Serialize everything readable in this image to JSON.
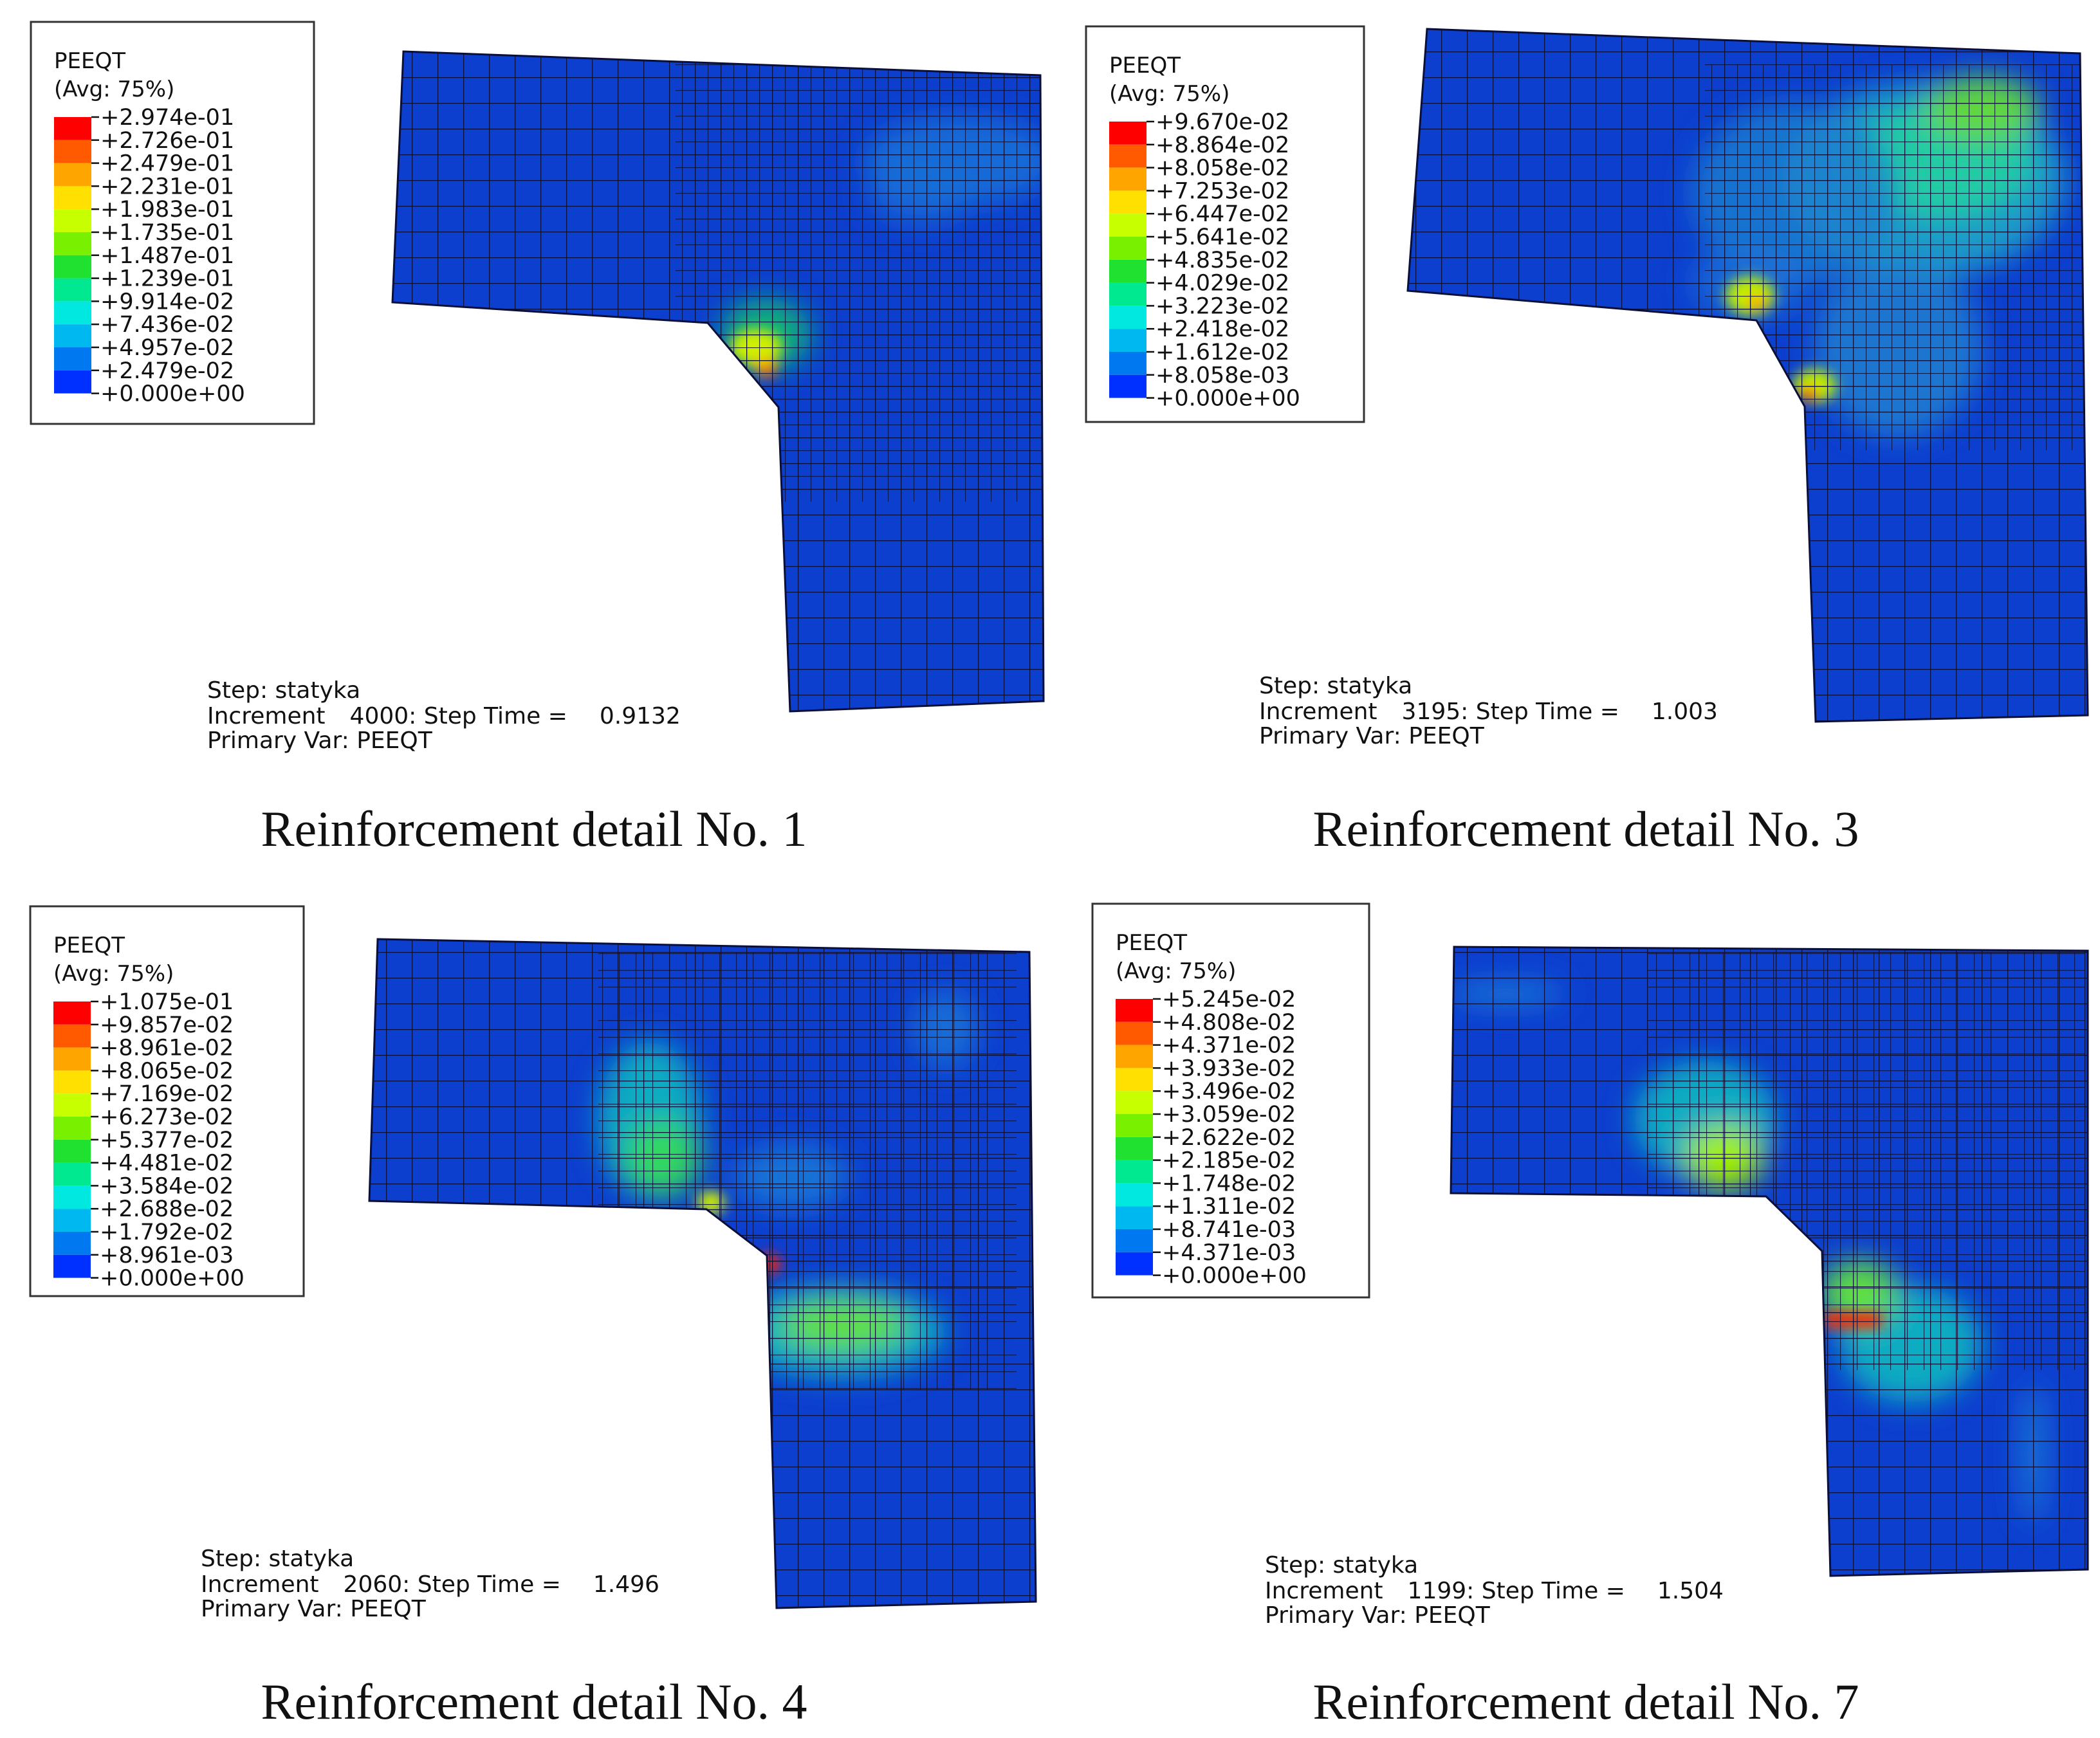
{
  "panels": [
    {
      "id": "p1",
      "legend": {
        "title": "PEEQT",
        "subtitle": "(Avg: 75%)",
        "values": [
          "+2.974e-01",
          "+2.726e-01",
          "+2.479e-01",
          "+2.231e-01",
          "+1.983e-01",
          "+1.735e-01",
          "+1.487e-01",
          "+1.239e-01",
          "+9.914e-02",
          "+7.436e-02",
          "+4.957e-02",
          "+2.479e-02",
          "+0.000e+00"
        ]
      },
      "info": {
        "step": "Step: statyka",
        "increment_label": "Increment",
        "increment": "4000",
        "step_time_label": ": Step Time =",
        "step_time": "0.9132",
        "primary_var": "Primary Var: PEEQT"
      },
      "caption": "Reinforcement detail No. 1"
    },
    {
      "id": "p3",
      "legend": {
        "title": "PEEQT",
        "subtitle": "(Avg: 75%)",
        "values": [
          "+9.670e-02",
          "+8.864e-02",
          "+8.058e-02",
          "+7.253e-02",
          "+6.447e-02",
          "+5.641e-02",
          "+4.835e-02",
          "+4.029e-02",
          "+3.223e-02",
          "+2.418e-02",
          "+1.612e-02",
          "+8.058e-03",
          "+0.000e+00"
        ]
      },
      "info": {
        "step": "Step: statyka",
        "increment_label": "Increment",
        "increment": "3195",
        "step_time_label": ": Step Time =",
        "step_time": "1.003",
        "primary_var": "Primary Var: PEEQT"
      },
      "caption": "Reinforcement detail No. 3"
    },
    {
      "id": "p4",
      "legend": {
        "title": "PEEQT",
        "subtitle": "(Avg: 75%)",
        "values": [
          "+1.075e-01",
          "+9.857e-02",
          "+8.961e-02",
          "+8.065e-02",
          "+7.169e-02",
          "+6.273e-02",
          "+5.377e-02",
          "+4.481e-02",
          "+3.584e-02",
          "+2.688e-02",
          "+1.792e-02",
          "+8.961e-03",
          "+0.000e+00"
        ]
      },
      "info": {
        "step": "Step: statyka",
        "increment_label": "Increment",
        "increment": "2060",
        "step_time_label": ": Step Time =",
        "step_time": "1.496",
        "primary_var": "Primary Var: PEEQT"
      },
      "caption": "Reinforcement detail No. 4"
    },
    {
      "id": "p7",
      "legend": {
        "title": "PEEQT",
        "subtitle": "(Avg: 75%)",
        "values": [
          "+5.245e-02",
          "+4.808e-02",
          "+4.371e-02",
          "+3.933e-02",
          "+3.496e-02",
          "+3.059e-02",
          "+2.622e-02",
          "+2.185e-02",
          "+1.748e-02",
          "+1.311e-02",
          "+8.741e-03",
          "+4.371e-03",
          "+0.000e+00"
        ]
      },
      "info": {
        "step": "Step: statyka",
        "increment_label": "Increment",
        "increment": "1199",
        "step_time_label": ": Step Time =",
        "step_time": "1.504",
        "primary_var": "Primary Var: PEEQT"
      },
      "caption": "Reinforcement detail No. 7"
    }
  ],
  "colors": {
    "scale": [
      "#ff0000",
      "#ff5a00",
      "#ffa500",
      "#ffe000",
      "#c8ff00",
      "#78f000",
      "#20e030",
      "#00e890",
      "#00e8e0",
      "#00b8f0",
      "#0078f0",
      "#0030ff"
    ],
    "base_mesh": "#0d3fcf",
    "mesh_line": "#0a0f3a",
    "legend_border": "#333333"
  }
}
